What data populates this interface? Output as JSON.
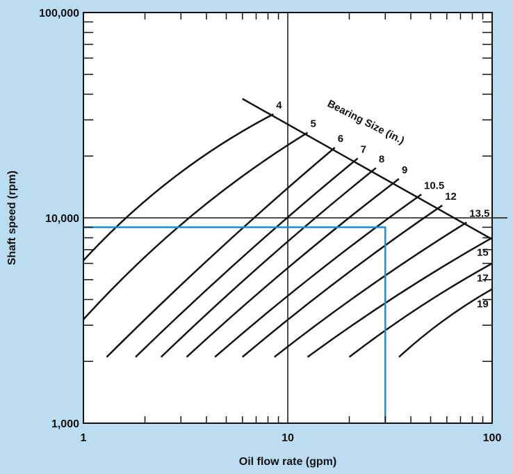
{
  "chart_data": {
    "type": "line",
    "xlabel": "Oil flow rate (gpm)",
    "ylabel": "Shaft speed (rpm)",
    "x_scale": "log",
    "y_scale": "log",
    "xlim": [
      1,
      100
    ],
    "ylim": [
      1000,
      100000
    ],
    "x_ticks": [
      {
        "value": 1,
        "label": "1"
      },
      {
        "value": 10,
        "label": "10"
      },
      {
        "value": 100,
        "label": "100"
      }
    ],
    "y_ticks": [
      {
        "value": 1000,
        "label": "1,000"
      },
      {
        "value": 10000,
        "label": "10,000"
      },
      {
        "value": 100000,
        "label": "100,000"
      }
    ],
    "reference_lines": {
      "x": 10,
      "y": 10000
    },
    "curves_title": "Bearing Size (in.)",
    "max_speed_line": {
      "from": [
        6,
        38000
      ],
      "to": [
        100,
        8500
      ]
    },
    "series": [
      {
        "name": "4",
        "points": [
          [
            1,
            6200
          ],
          [
            8.5,
            32000
          ]
        ]
      },
      {
        "name": "5",
        "points": [
          [
            1,
            3200
          ],
          [
            12.5,
            26000
          ]
        ]
      },
      {
        "name": "6",
        "points": [
          [
            1.3,
            2100
          ],
          [
            17,
            22000
          ]
        ]
      },
      {
        "name": "7",
        "points": [
          [
            1.8,
            2100
          ],
          [
            22,
            19500
          ]
        ]
      },
      {
        "name": "8",
        "points": [
          [
            2.4,
            2100
          ],
          [
            27,
            17500
          ]
        ]
      },
      {
        "name": "9",
        "points": [
          [
            3.2,
            2100
          ],
          [
            35,
            15500
          ]
        ]
      },
      {
        "name": "10.5",
        "points": [
          [
            4.4,
            2100
          ],
          [
            45,
            13000
          ]
        ]
      },
      {
        "name": "12",
        "points": [
          [
            6,
            2100
          ],
          [
            57,
            11500
          ]
        ]
      },
      {
        "name": "13.5",
        "points": [
          [
            8.6,
            2100
          ],
          [
            75,
            9500
          ]
        ]
      },
      {
        "name": "15",
        "points": [
          [
            12.5,
            2100
          ],
          [
            100,
            8000
          ]
        ]
      },
      {
        "name": "17",
        "points": [
          [
            20,
            2100
          ],
          [
            100,
            6000
          ]
        ]
      },
      {
        "name": "19",
        "points": [
          [
            35,
            2100
          ],
          [
            100,
            4500
          ]
        ]
      }
    ],
    "example_path": {
      "color": "#1a8fd1",
      "points": [
        [
          1,
          9000
        ],
        [
          30,
          9000
        ],
        [
          30,
          1000
        ]
      ]
    }
  }
}
